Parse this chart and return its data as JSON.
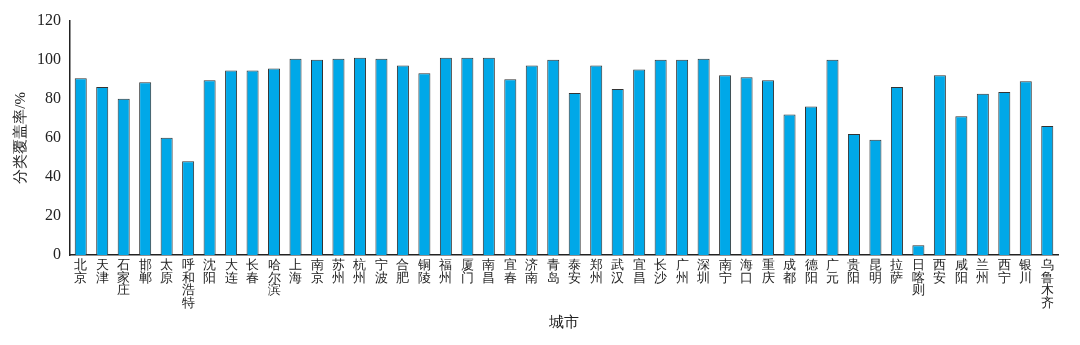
{
  "chart_data": {
    "type": "bar",
    "xlabel": "城市",
    "ylabel": "分类覆盖率/%",
    "categories": [
      "北京",
      "天津",
      "石家庄",
      "邯郸",
      "太原",
      "呼和浩特",
      "沈阳",
      "大连",
      "长春",
      "哈尔滨",
      "上海",
      "南京",
      "苏州",
      "杭州",
      "宁波",
      "合肥",
      "铜陵",
      "福州",
      "厦门",
      "南昌",
      "宜春",
      "济南",
      "青岛",
      "泰安",
      "郑州",
      "武汉",
      "宜昌",
      "长沙",
      "广州",
      "深圳",
      "南宁",
      "海口",
      "重庆",
      "成都",
      "德阳",
      "广元",
      "贵阳",
      "昆明",
      "拉萨",
      "日喀则",
      "西安",
      "咸阳",
      "兰州",
      "西宁",
      "银川",
      "乌鲁木齐"
    ],
    "values": [
      90.5,
      86,
      80,
      88.5,
      60,
      48,
      89.5,
      94.5,
      94.5,
      95.5,
      100.5,
      100,
      100.5,
      101,
      100.5,
      97,
      93,
      101,
      101,
      101,
      90,
      97,
      100,
      83,
      97,
      85,
      95,
      100,
      100,
      100.5,
      92,
      91,
      89.5,
      72,
      76,
      100,
      62,
      59,
      86,
      5,
      92,
      71,
      82.5,
      83.5,
      89,
      66
    ],
    "color": "#00a8e8",
    "ylim": [
      0,
      120
    ],
    "yticks": [
      0,
      20,
      40,
      60,
      80,
      100,
      120
    ],
    "grid": false,
    "legend": false
  }
}
